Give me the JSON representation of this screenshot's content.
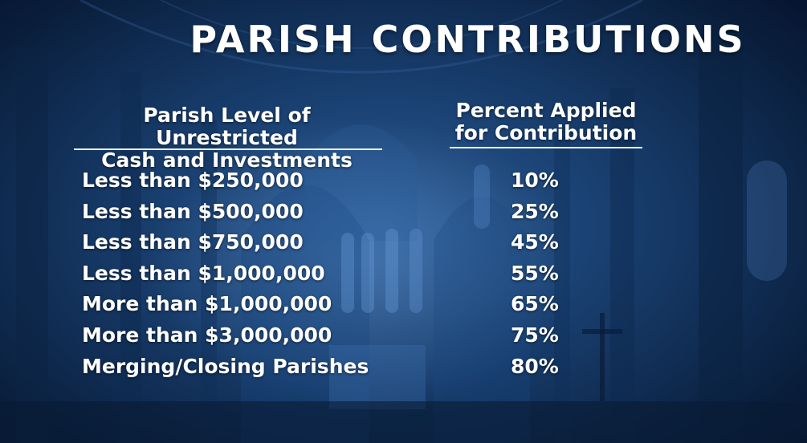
{
  "title": "PARISH CONTRIBUTIONS",
  "headers": {
    "left": [
      "Parish Level of Unrestricted",
      "Cash and Investments"
    ],
    "right": [
      "Percent Applied",
      "for Contribution"
    ]
  },
  "rows": [
    {
      "label": "Less than $250,000",
      "value": "10%"
    },
    {
      "label": "Less than $500,000",
      "value": "25%"
    },
    {
      "label": "Less than $750,000",
      "value": "45%"
    },
    {
      "label": "Less than $1,000,000",
      "value": "55%"
    },
    {
      "label": "More than $1,000,000",
      "value": "65%"
    },
    {
      "label": "More than $3,000,000",
      "value": "75%"
    },
    {
      "label": "Merging/Closing Parishes",
      "value": "80%"
    }
  ],
  "colors": {
    "background": "#173c6b",
    "text": "#ffffff"
  }
}
